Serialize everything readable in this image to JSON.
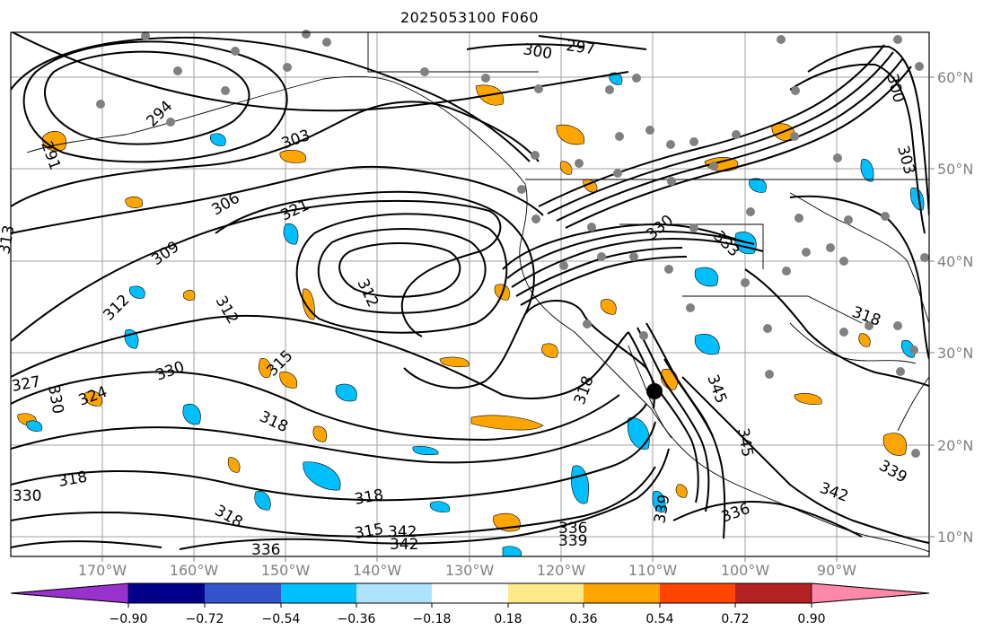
{
  "title": "2025053100 F060",
  "map": {
    "lat_labels": [
      "60°N",
      "50°N",
      "40°N",
      "30°N",
      "20°N",
      "10°N"
    ],
    "lon_labels": [
      "170°W",
      "160°W",
      "150°W",
      "140°W",
      "130°W",
      "120°W",
      "110°W",
      "100°W",
      "90°W"
    ],
    "contour_labels": [
      "297",
      "300",
      "300",
      "303",
      "303",
      "294",
      "291",
      "306",
      "309",
      "312",
      "312",
      "312",
      "315",
      "318",
      "318",
      "318",
      "318",
      "318",
      "321",
      "324",
      "327",
      "330",
      "330",
      "330",
      "336",
      "336",
      "336",
      "339",
      "339",
      "339",
      "342",
      "342",
      "342",
      "345",
      "345",
      "315",
      "313",
      "318",
      "330",
      "333"
    ],
    "shading_colors": {
      "positive_low": "#ffa500",
      "negative_low": "#00bfff",
      "contour": "#000000"
    }
  },
  "colorbar": {
    "colors": [
      "#9932cc",
      "#00008b",
      "#3355cc",
      "#00bfff",
      "#aee3ff",
      "#ffffff",
      "#ffea8a",
      "#ffa500",
      "#ff4500",
      "#b22222",
      "#ff88aa"
    ],
    "tick_labels": [
      "−0.90",
      "−0.72",
      "−0.54",
      "−0.36",
      "−0.18",
      "0.18",
      "0.36",
      "0.54",
      "0.72",
      "0.90"
    ]
  }
}
